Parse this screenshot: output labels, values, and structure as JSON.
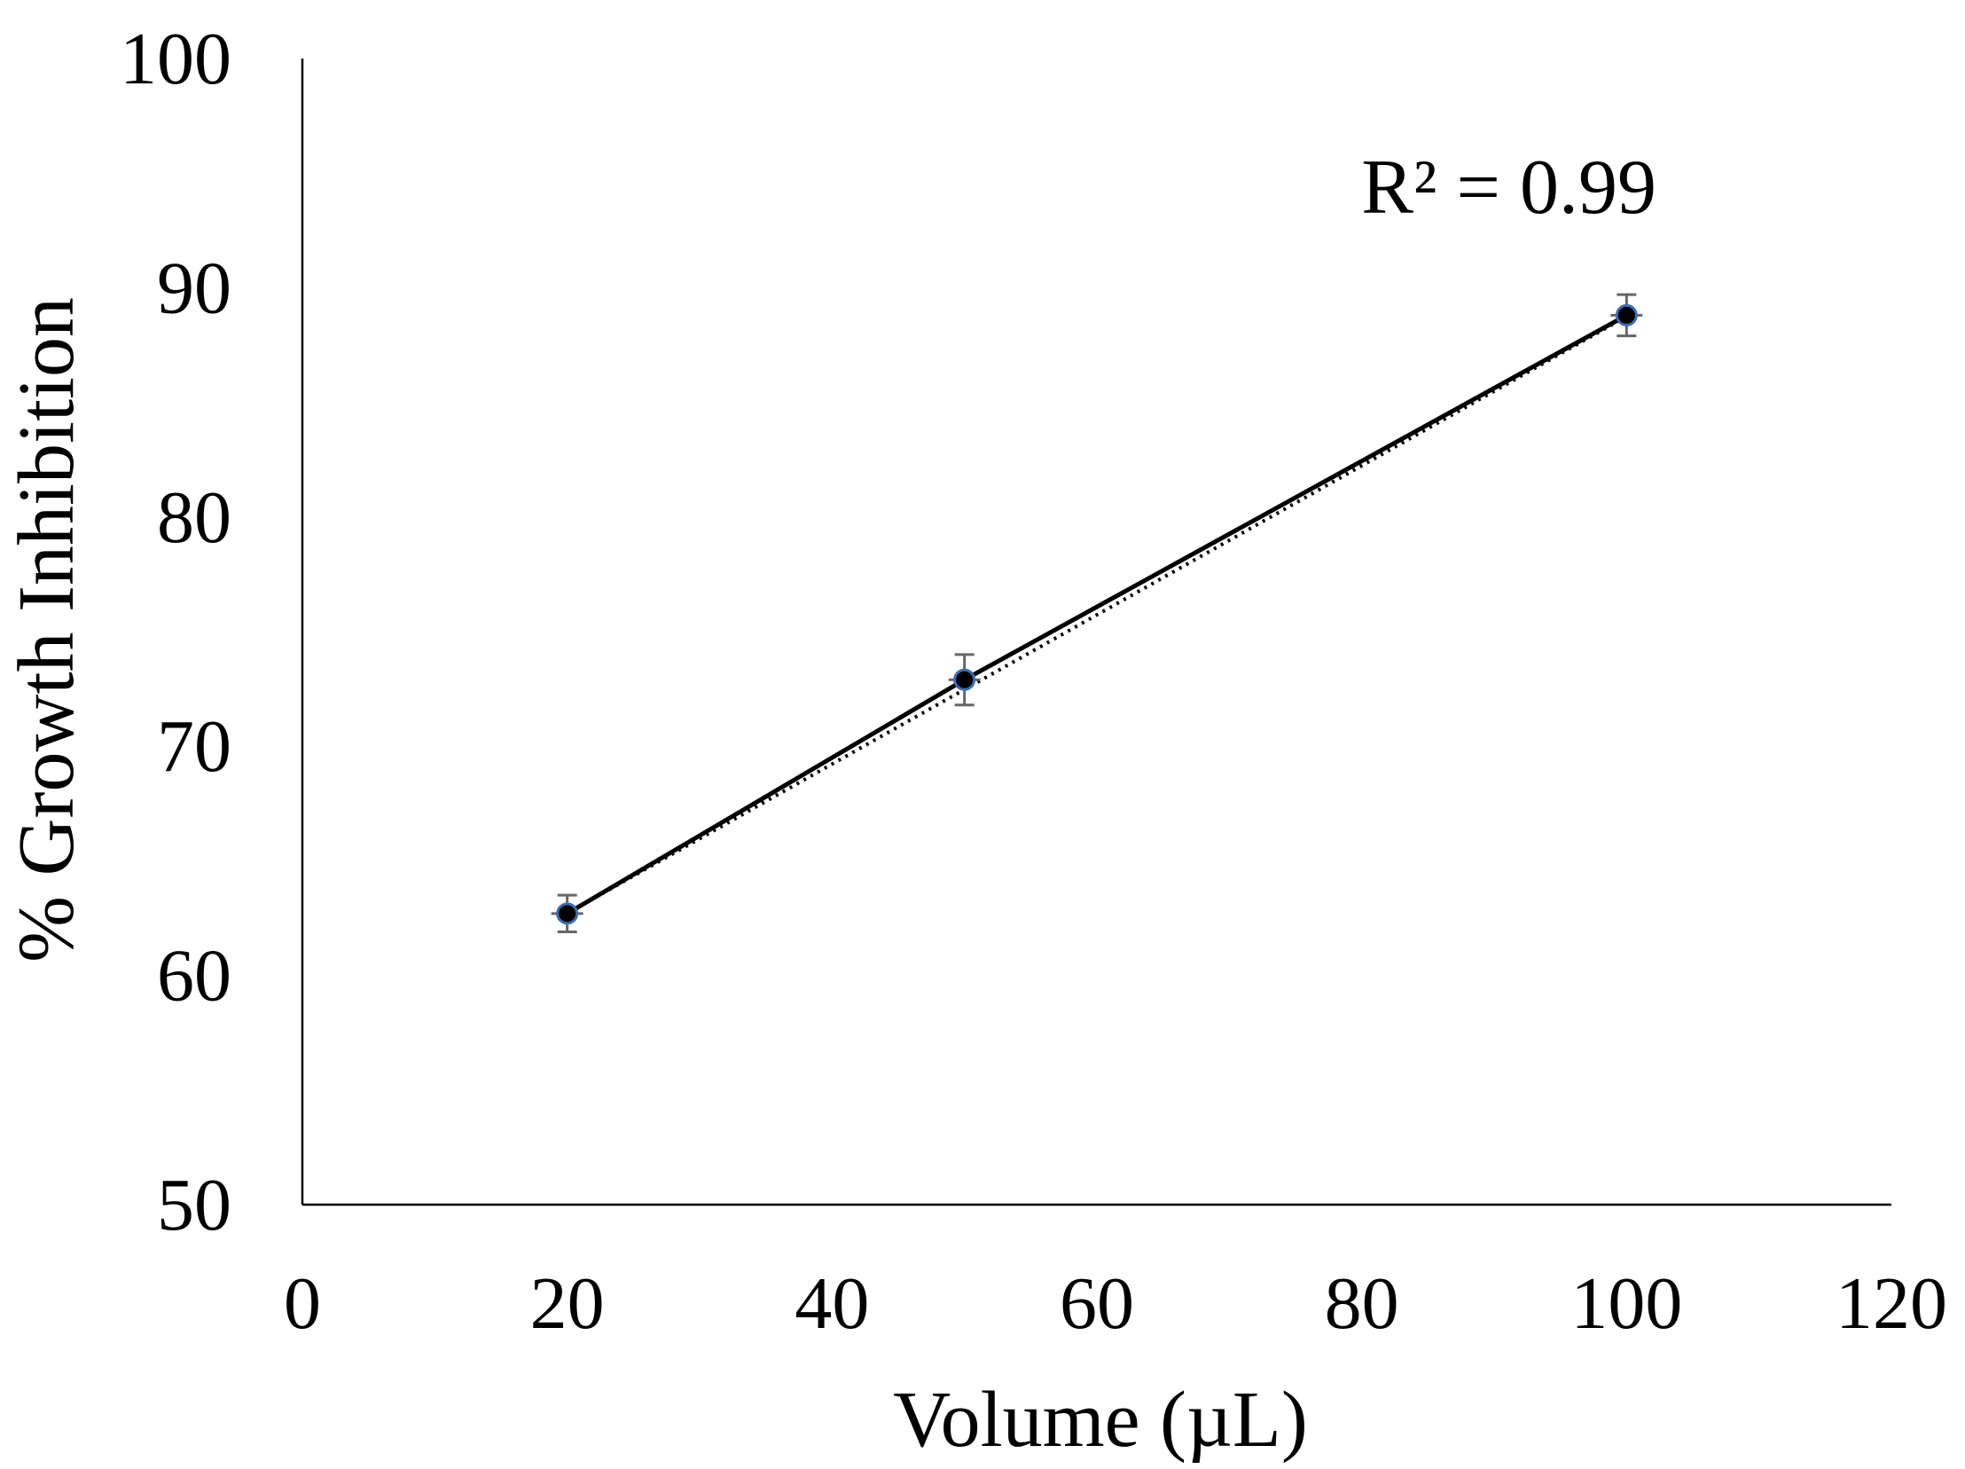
{
  "chart_data": {
    "type": "scatter",
    "title": "",
    "xlabel": "Volume (µL)",
    "ylabel": "% Growth Inhibition",
    "xlim": [
      0,
      120
    ],
    "ylim": [
      50,
      100
    ],
    "xticks": [
      0,
      20,
      40,
      60,
      80,
      100,
      120
    ],
    "yticks": [
      50,
      60,
      70,
      80,
      90,
      100
    ],
    "grid": false,
    "legend": "none",
    "series": [
      {
        "x": [
          20,
          50,
          100
        ],
        "y": [
          62.7,
          72.9,
          88.8
        ],
        "y_error": [
          0.8,
          1.1,
          0.9
        ],
        "marker_fill": "#000000",
        "marker_edge": "#3a6db5",
        "error_bar_color": "#666666"
      }
    ],
    "trendlines": [
      {
        "kind": "data-line",
        "style": "solid",
        "color": "#000000"
      },
      {
        "kind": "linear-fit",
        "style": "dotted",
        "color": "#000000"
      }
    ],
    "annotations": [
      {
        "text": "R² = 0.99"
      }
    ]
  }
}
